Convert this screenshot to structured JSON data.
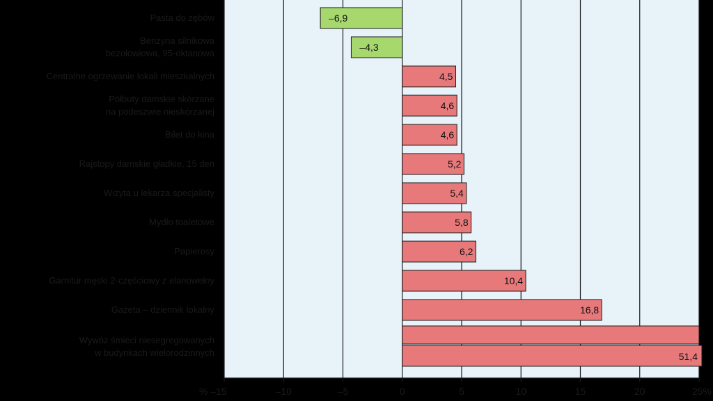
{
  "chart_data": {
    "type": "bar",
    "orientation": "horizontal",
    "categories": [
      [
        "Pasta do zębów"
      ],
      [
        "Benzyna silnikowa",
        "bezołowiowa, 95-oktanowa"
      ],
      [
        "Centralne ogrzewanie lokali mieszkalnych"
      ],
      [
        "Półbuty damskie skórzane",
        "na podeszwie nieskórzanej"
      ],
      [
        "Bilet do kina"
      ],
      [
        "Rajstopy damskie gładkie, 15 den"
      ],
      [
        "Wizyta u lekarza specjalisty"
      ],
      [
        "Mydło toaletowe"
      ],
      [
        "Papierosy"
      ],
      [
        "Garnitur męski 2-częściowy z elanowełny"
      ],
      [
        "Gazeta – dziennik lokalny"
      ],
      [
        "Wywóz śmieci niesegregowanych",
        "w budynkach wielorodzinnych"
      ]
    ],
    "values": [
      -6.9,
      -4.3,
      4.5,
      4.6,
      4.6,
      5.2,
      5.4,
      5.8,
      6.2,
      10.4,
      16.8,
      51.4
    ],
    "value_labels": [
      "–6,9",
      "–4,3",
      "4,5",
      "4,6",
      "4,6",
      "5,2",
      "5,4",
      "5,8",
      "6,2",
      "10,4",
      "16,8",
      "51,4"
    ],
    "xlim": [
      -15,
      25
    ],
    "xticks": [
      -15,
      -10,
      -5,
      0,
      5,
      10,
      15,
      20,
      25
    ],
    "xtick_labels": [
      "% –15",
      "–10",
      "–5",
      "0",
      "5",
      "10",
      "15",
      "20",
      "25%"
    ],
    "grid": "vertical",
    "colors": {
      "positive": "#e8797a",
      "negative": "#a6d86e",
      "plot_background": "#e8f3f9",
      "gridline": "#1a1a1a",
      "bar_border": "#1a1a1a"
    }
  }
}
